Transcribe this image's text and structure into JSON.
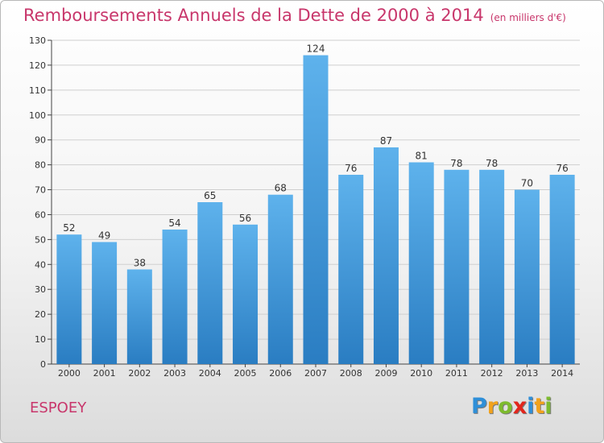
{
  "title": {
    "main": "Remboursements Annuels de la Dette de 2000 à 2014",
    "unit": "(en milliers d'€)"
  },
  "commune": "ESPOEY",
  "logo": {
    "text": "Proxiti",
    "letters": [
      {
        "ch": "P",
        "color": "#2f8fd8"
      },
      {
        "ch": "r",
        "color": "#f2a21c"
      },
      {
        "ch": "o",
        "color": "#7dbb2e"
      },
      {
        "ch": "x",
        "color": "#e2261d"
      },
      {
        "ch": "i",
        "color": "#2f8fd8"
      },
      {
        "ch": "t",
        "color": "#f2a21c"
      },
      {
        "ch": "i",
        "color": "#7dbb2e"
      }
    ]
  },
  "colors": {
    "accent": "#c8366b",
    "bar_top": "#5eb2ec",
    "bar_bottom": "#2a7dc2",
    "grid": "#cfcfcf"
  },
  "chart_data": {
    "type": "bar",
    "categories": [
      "2000",
      "2001",
      "2002",
      "2003",
      "2004",
      "2005",
      "2006",
      "2007",
      "2008",
      "2009",
      "2010",
      "2011",
      "2012",
      "2013",
      "2014"
    ],
    "values": [
      52,
      49,
      38,
      54,
      65,
      56,
      68,
      124,
      76,
      87,
      81,
      78,
      78,
      70,
      76
    ],
    "ylim": [
      0,
      130
    ],
    "yticks": [
      0,
      10,
      20,
      30,
      40,
      50,
      60,
      70,
      80,
      90,
      100,
      110,
      120,
      130
    ],
    "grid": true,
    "data_labels": true
  }
}
